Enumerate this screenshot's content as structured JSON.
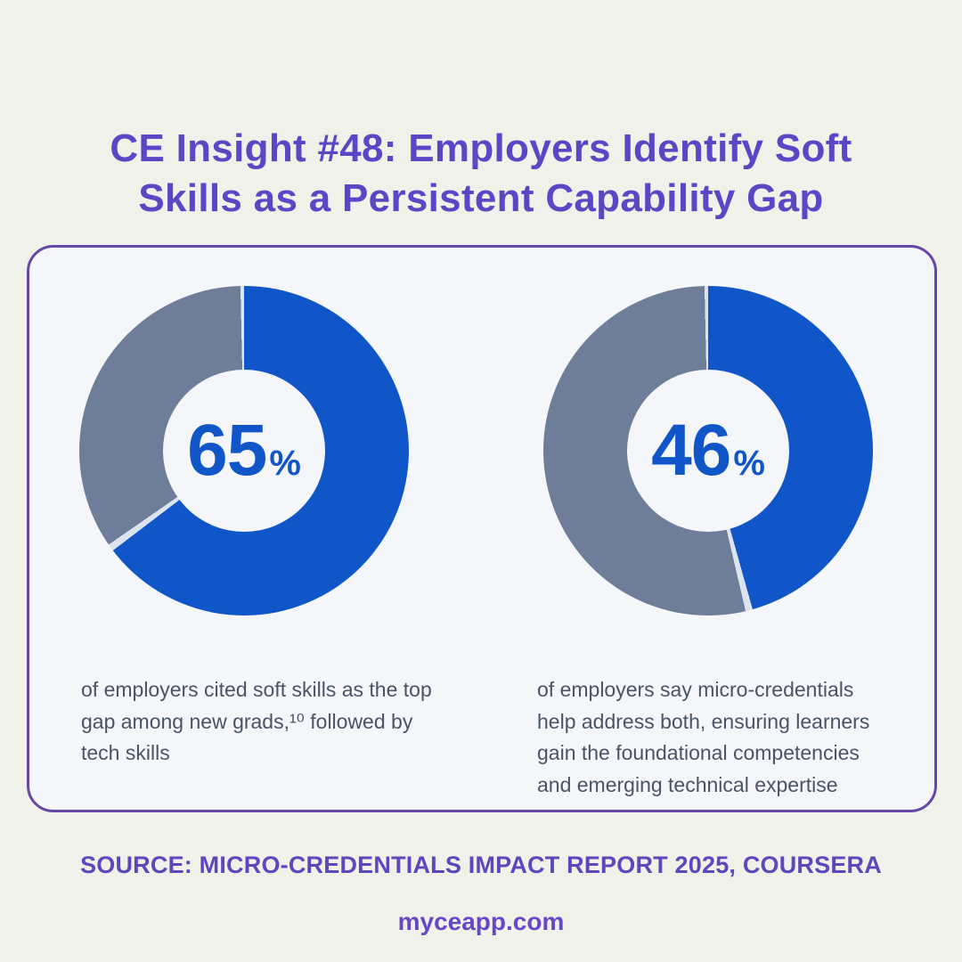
{
  "header": {
    "title_line1": "CE Insight #48: Employers Identify Soft",
    "title_line2": "Skills as a Persistent Capability Gap"
  },
  "chart_data": [
    {
      "type": "pie",
      "subtype": "donut",
      "title": "Employers citing soft skills as the top gap among new grads",
      "categories": [
        "cited soft skills as top gap",
        "remainder"
      ],
      "values": [
        65,
        35
      ],
      "colors": [
        "#1156c9",
        "#6e7d98"
      ],
      "start_angle_deg": 0,
      "direction": "clockwise",
      "center_value": "65",
      "center_unit": "%",
      "caption_lines": [
        "of employers cited soft skills as the top",
        "gap among new grads,¹⁰ followed by",
        "tech skills"
      ]
    },
    {
      "type": "pie",
      "subtype": "donut",
      "title": "Employers saying micro-credentials help address both",
      "categories": [
        "say micro-credentials help address both",
        "remainder"
      ],
      "values": [
        46,
        54
      ],
      "colors": [
        "#1156c9",
        "#6e7d98"
      ],
      "start_angle_deg": 0,
      "direction": "clockwise",
      "center_value": "46",
      "center_unit": "%",
      "caption_lines": [
        "of employers say micro-credentials",
        "help address both, ensuring learners",
        "gain the foundational competencies",
        "and emerging technical expertise"
      ]
    }
  ],
  "footer": {
    "source": "SOURCE: MICRO-CREDENTIALS IMPACT REPORT 2025, COURSERA",
    "website": "myceapp.com"
  },
  "theme": {
    "page_bg": "#f0f1e8",
    "card_bg": "#f5f6fa",
    "card_border": "#6647a7",
    "title_color": "#5c46c6",
    "footer_color": "#5f46bd",
    "accent_blue": "#1156c9",
    "slate_gray": "#6e7d98",
    "caption_color": "#4a5466",
    "segment_separator": "#dce4f0"
  }
}
